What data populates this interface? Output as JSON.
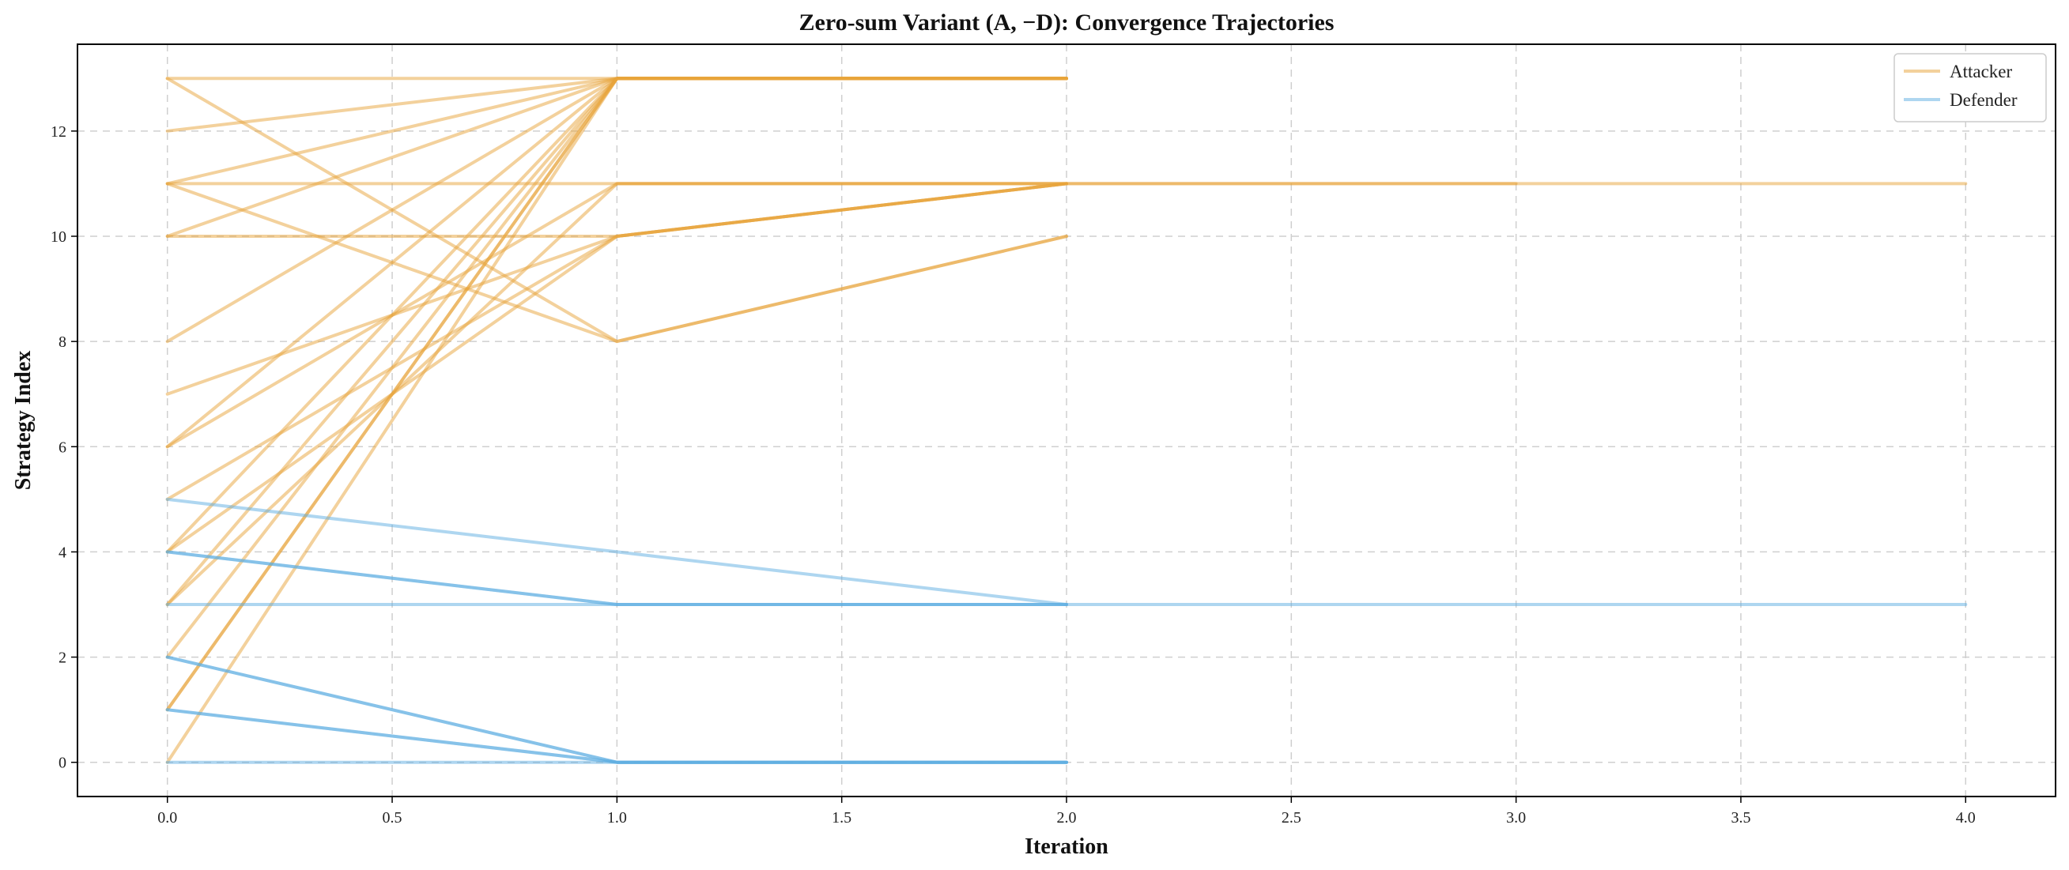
{
  "chart_data": {
    "type": "line",
    "title": "Zero-sum Variant (A, −D): Convergence Trajectories",
    "xlabel": "Iteration",
    "ylabel": "Strategy Index",
    "xlim": [
      -0.2,
      4.2
    ],
    "ylim": [
      -0.65,
      13.65
    ],
    "xticks": [
      "0.0",
      "0.5",
      "1.0",
      "1.5",
      "2.0",
      "2.5",
      "3.0",
      "3.5",
      "4.0"
    ],
    "xtick_values": [
      0,
      0.5,
      1,
      1.5,
      2,
      2.5,
      3,
      3.5,
      4
    ],
    "yticks": [
      "0",
      "2",
      "4",
      "6",
      "8",
      "10",
      "12"
    ],
    "ytick_values": [
      0,
      2,
      4,
      6,
      8,
      10,
      12
    ],
    "grid": true,
    "legend_placement": "top-right",
    "legend": [
      {
        "label": "Attacker",
        "color": "#E8A33A"
      },
      {
        "label": "Defender",
        "color": "#5DADE2"
      }
    ],
    "series": [
      {
        "group": "Attacker",
        "x": [
          0,
          1,
          2
        ],
        "y": [
          13,
          13,
          13
        ]
      },
      {
        "group": "Attacker",
        "x": [
          0,
          1,
          2
        ],
        "y": [
          12,
          13,
          13
        ]
      },
      {
        "group": "Attacker",
        "x": [
          0,
          1,
          2
        ],
        "y": [
          13,
          8,
          10
        ]
      },
      {
        "group": "Attacker",
        "x": [
          0,
          1,
          2
        ],
        "y": [
          11,
          13,
          13
        ]
      },
      {
        "group": "Attacker",
        "x": [
          0,
          1,
          2,
          3,
          4
        ],
        "y": [
          11,
          11,
          11,
          11,
          11
        ]
      },
      {
        "group": "Attacker",
        "x": [
          0,
          1,
          2
        ],
        "y": [
          11,
          8,
          10
        ]
      },
      {
        "group": "Attacker",
        "x": [
          0,
          1,
          2
        ],
        "y": [
          10,
          13,
          13
        ]
      },
      {
        "group": "Attacker",
        "x": [
          0,
          1,
          2,
          3
        ],
        "y": [
          10,
          10,
          11,
          11
        ]
      },
      {
        "group": "Attacker",
        "x": [
          0,
          1,
          2
        ],
        "y": [
          8,
          13,
          13
        ]
      },
      {
        "group": "Attacker",
        "x": [
          0,
          1,
          2
        ],
        "y": [
          7,
          10,
          11
        ]
      },
      {
        "group": "Attacker",
        "x": [
          0,
          1,
          2
        ],
        "y": [
          6,
          13,
          13
        ]
      },
      {
        "group": "Attacker",
        "x": [
          0,
          1,
          2
        ],
        "y": [
          6,
          11,
          11
        ]
      },
      {
        "group": "Attacker",
        "x": [
          0,
          1,
          2
        ],
        "y": [
          5,
          10,
          11
        ]
      },
      {
        "group": "Attacker",
        "x": [
          0,
          1,
          2
        ],
        "y": [
          4,
          13,
          13
        ]
      },
      {
        "group": "Attacker",
        "x": [
          0,
          1,
          2
        ],
        "y": [
          4,
          10,
          11
        ]
      },
      {
        "group": "Attacker",
        "x": [
          0,
          1,
          2
        ],
        "y": [
          3,
          13,
          13
        ]
      },
      {
        "group": "Attacker",
        "x": [
          0,
          1,
          2
        ],
        "y": [
          3,
          11,
          11
        ]
      },
      {
        "group": "Attacker",
        "x": [
          0,
          1,
          2
        ],
        "y": [
          2,
          13,
          13
        ]
      },
      {
        "group": "Attacker",
        "x": [
          0,
          1,
          2
        ],
        "y": [
          1,
          13,
          13
        ]
      },
      {
        "group": "Attacker",
        "x": [
          0,
          1,
          2
        ],
        "y": [
          1,
          13,
          13
        ]
      },
      {
        "group": "Attacker",
        "x": [
          0,
          1,
          2
        ],
        "y": [
          0,
          13,
          13
        ]
      },
      {
        "group": "Defender",
        "x": [
          0,
          1,
          2,
          3,
          4
        ],
        "y": [
          5,
          4,
          3,
          3,
          3
        ]
      },
      {
        "group": "Defender",
        "x": [
          0,
          1,
          2
        ],
        "y": [
          4,
          3,
          3
        ]
      },
      {
        "group": "Defender",
        "x": [
          0,
          1,
          2
        ],
        "y": [
          4,
          3,
          3
        ]
      },
      {
        "group": "Defender",
        "x": [
          0,
          1,
          2
        ],
        "y": [
          3,
          3,
          3
        ]
      },
      {
        "group": "Defender",
        "x": [
          0,
          1,
          2
        ],
        "y": [
          2,
          0,
          0
        ]
      },
      {
        "group": "Defender",
        "x": [
          0,
          1,
          2
        ],
        "y": [
          2,
          0,
          0
        ]
      },
      {
        "group": "Defender",
        "x": [
          0,
          1,
          2
        ],
        "y": [
          1,
          0,
          0
        ]
      },
      {
        "group": "Defender",
        "x": [
          0,
          1,
          2
        ],
        "y": [
          1,
          0,
          0
        ]
      },
      {
        "group": "Defender",
        "x": [
          0,
          1,
          2
        ],
        "y": [
          0,
          0,
          0
        ]
      }
    ]
  }
}
